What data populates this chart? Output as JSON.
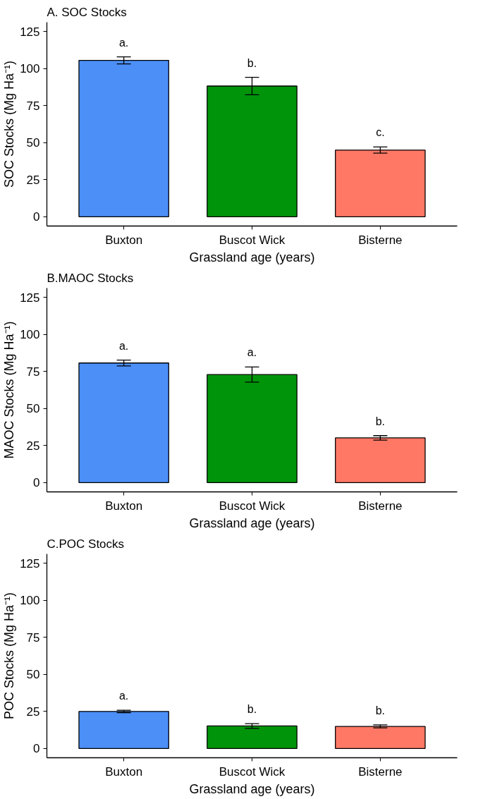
{
  "chart_data": [
    {
      "type": "bar",
      "title": "A. SOC Stocks",
      "xlabel": "Grassland age (years)",
      "ylabel": "SOC Stocks (Mg Ha⁻¹)",
      "categories": [
        "Buxton",
        "Buscot Wick",
        "Bisterne"
      ],
      "values": [
        105.5,
        88.2,
        45.0
      ],
      "colors": [
        "#4b8ff7",
        "#00940a",
        "#ff7866"
      ],
      "errors": [
        2.4,
        5.9,
        2.1
      ],
      "ylim": [
        -6.25,
        131.25
      ],
      "yticks": [
        0,
        25,
        50,
        75,
        100,
        125
      ],
      "grid": false,
      "annotations": [
        "a.",
        "b.",
        "c."
      ]
    },
    {
      "type": "bar",
      "title": "B.MAOC Stocks",
      "xlabel": "Grassland age (years)",
      "ylabel": "MAOC Stocks (Mg Ha⁻¹)",
      "categories": [
        "Buxton",
        "Buscot Wick",
        "Bisterne"
      ],
      "values": [
        80.7,
        72.9,
        30.2
      ],
      "colors": [
        "#4b8ff7",
        "#00940a",
        "#ff7866"
      ],
      "errors": [
        2.0,
        5.1,
        1.5
      ],
      "ylim": [
        -6.25,
        131.25
      ],
      "yticks": [
        0,
        25,
        50,
        75,
        100,
        125
      ],
      "grid": false,
      "annotations": [
        "a.",
        "a.",
        "b."
      ]
    },
    {
      "type": "bar",
      "title": "C.POC Stocks",
      "xlabel": "Grassland age (years)",
      "ylabel": "POC Stocks (Mg Ha⁻¹)",
      "categories": [
        "Buxton",
        "Buscot Wick",
        "Bisterne"
      ],
      "values": [
        25.0,
        15.2,
        14.9
      ],
      "colors": [
        "#4b8ff7",
        "#00940a",
        "#ff7866"
      ],
      "errors": [
        0.8,
        1.6,
        1.0
      ],
      "ylim": [
        -6.25,
        131.25
      ],
      "yticks": [
        0,
        25,
        50,
        75,
        100,
        125
      ],
      "grid": false,
      "annotations": [
        "a.",
        "b.",
        "b."
      ]
    }
  ]
}
